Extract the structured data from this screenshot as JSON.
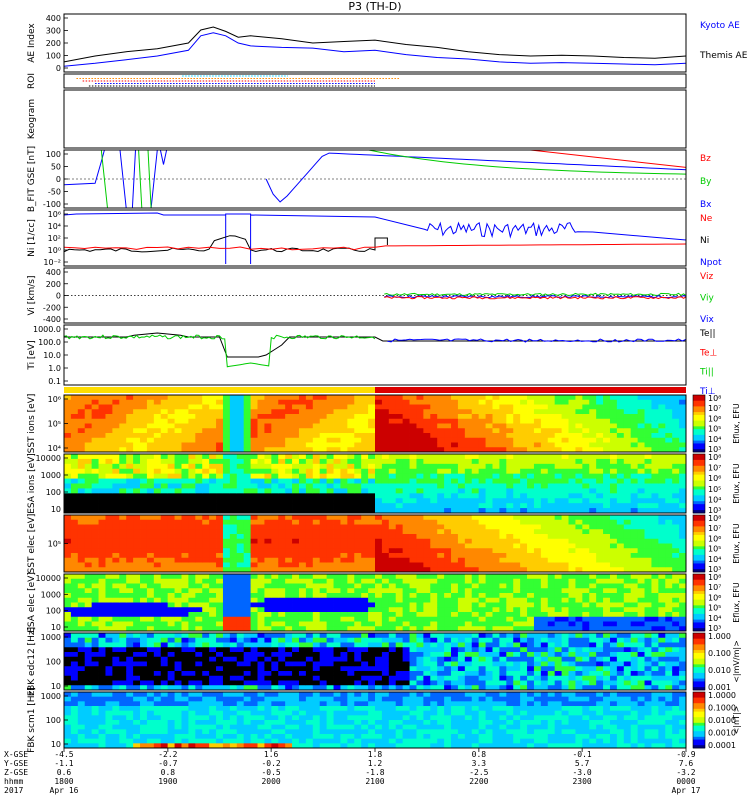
{
  "title": "P3 (TH-D)",
  "colors": {
    "black": "#000000",
    "blue": "#0000ff",
    "red": "#ff0000",
    "green": "#00cc00",
    "cyan": "#00ccff",
    "orange": "#ff8800"
  },
  "chart_data": [
    {
      "type": "line",
      "panel": "ae",
      "ylabel": "AE Index",
      "yticks": [
        "400",
        "300",
        "200",
        "100",
        "0"
      ],
      "ylim": [
        0,
        400
      ],
      "x": [
        0,
        0.05,
        0.1,
        0.15,
        0.2,
        0.22,
        0.24,
        0.26,
        0.28,
        0.3,
        0.35,
        0.4,
        0.45,
        0.5,
        0.55,
        0.6,
        0.65,
        0.7,
        0.75,
        0.8,
        0.85,
        0.9,
        0.95,
        1.0
      ],
      "series": [
        {
          "name": "Kyoto AE",
          "color": "#0000ff",
          "values": [
            40,
            60,
            85,
            110,
            150,
            250,
            270,
            250,
            200,
            180,
            170,
            165,
            140,
            150,
            120,
            100,
            90,
            70,
            60,
            65,
            60,
            55,
            50,
            60
          ]
        },
        {
          "name": "Themis AE",
          "color": "#000000",
          "values": [
            70,
            110,
            140,
            160,
            200,
            290,
            310,
            280,
            240,
            250,
            230,
            200,
            210,
            220,
            190,
            170,
            140,
            120,
            110,
            115,
            110,
            100,
            95,
            110
          ]
        }
      ]
    },
    {
      "type": "scatter",
      "panel": "roi",
      "ylabel": "ROI",
      "rows": [
        {
          "color": "#00ccff",
          "x0": 0.19,
          "x1": 0.36
        },
        {
          "color": "#ff8800",
          "x0": 0.02,
          "x1": 0.54
        },
        {
          "color": "#ff0000",
          "x0": 0.03,
          "x1": 0.5
        },
        {
          "color": "#0000ff",
          "x0": 0.05,
          "x1": 0.5
        },
        {
          "color": "#000000",
          "x0": 0.04,
          "x1": 0.5
        }
      ]
    },
    {
      "type": "heatmap",
      "panel": "keogram",
      "ylabel": "Keogram"
    },
    {
      "type": "line",
      "panel": "bfit",
      "ylabel": "B_FIT GSE [nT]",
      "yticks": [
        "100",
        "50",
        "0",
        "-50",
        "-100"
      ],
      "ylim": [
        -100,
        100
      ],
      "series": [
        {
          "name": "Bz",
          "color": "#ff0000"
        },
        {
          "name": "By",
          "color": "#00cc00"
        },
        {
          "name": "Bx",
          "color": "#0000ff"
        }
      ]
    },
    {
      "type": "line",
      "panel": "ni",
      "ylabel": "Ni [1/cc]",
      "yticks": [
        "10⁶",
        "10⁴",
        "10²",
        "10⁰",
        "10⁻²"
      ],
      "series": [
        {
          "name": "Ne",
          "color": "#ff0000"
        },
        {
          "name": "Ni",
          "color": "#000000"
        },
        {
          "name": "Npot",
          "color": "#0000ff"
        }
      ]
    },
    {
      "type": "line",
      "panel": "vi",
      "ylabel": "Vi [km/s]",
      "yticks": [
        "400",
        "200",
        "0",
        "-200",
        "-400"
      ],
      "ylim": [
        -500,
        500
      ],
      "series": [
        {
          "name": "Viz",
          "color": "#ff0000"
        },
        {
          "name": "Viy",
          "color": "#00cc00"
        },
        {
          "name": "Vix",
          "color": "#0000ff"
        }
      ]
    },
    {
      "type": "line",
      "panel": "ti",
      "ylabel": "Ti [eV]",
      "yticks": [
        "1000.0",
        "100.0",
        "10.0",
        "1.0",
        "0.1"
      ],
      "series": [
        {
          "name": "Te||",
          "color": "#000000"
        },
        {
          "name": "Te⊥",
          "color": "#ff0000"
        },
        {
          "name": "Ti||",
          "color": "#00cc00"
        },
        {
          "name": "Ti⊥",
          "color": "#0000ff"
        }
      ]
    },
    {
      "type": "heatmap",
      "panel": "sst_ion",
      "ylabel": "SST ions [eV]",
      "yticks": [
        "10⁶",
        "10⁵",
        "10⁴"
      ],
      "colorbar": {
        "label": "Eflux, EFU",
        "ticks": [
          "10⁸",
          "10⁷",
          "10⁶",
          "10⁵",
          "10⁴",
          "10³"
        ]
      }
    },
    {
      "type": "heatmap",
      "panel": "esa_ion",
      "ylabel": "ESA ions [eV]",
      "yticks": [
        "10000",
        "1000",
        "100",
        "10"
      ],
      "colorbar": {
        "label": "Eflux, EFU",
        "ticks": [
          "10⁸",
          "10⁷",
          "10⁶",
          "10⁵",
          "10⁴",
          "10³"
        ]
      }
    },
    {
      "type": "heatmap",
      "panel": "sst_elec",
      "ylabel": "SST elec [eV]",
      "yticks": [
        "10⁵"
      ],
      "colorbar": {
        "label": "Eflux, EFU",
        "ticks": [
          "10⁸",
          "10⁷",
          "10⁶",
          "10⁵",
          "10⁴",
          "10³"
        ]
      }
    },
    {
      "type": "heatmap",
      "panel": "esa_elec",
      "ylabel": "ESA elec [eV]",
      "yticks": [
        "10000",
        "1000",
        "100",
        "10"
      ],
      "colorbar": {
        "label": "Eflux, EFU",
        "ticks": [
          "10⁸",
          "10⁷",
          "10⁶",
          "10⁵",
          "10⁴",
          "10³"
        ]
      }
    },
    {
      "type": "heatmap",
      "panel": "fbk_e",
      "ylabel": "FBK edc12 [Hz]",
      "yticks": [
        "1000",
        "100",
        "10"
      ],
      "colorbar": {
        "label": "<|mV/m|>",
        "ticks": [
          "1.000",
          "0.100",
          "0.010",
          "0.001"
        ]
      }
    },
    {
      "type": "heatmap",
      "panel": "fbk_b",
      "ylabel": "FBK scm1 [Hz]",
      "yticks": [
        "1000",
        "100",
        "10"
      ],
      "colorbar": {
        "label": "<|nT|>",
        "ticks": [
          "1.0000",
          "0.1000",
          "0.0100",
          "0.0010",
          "0.0001"
        ]
      }
    }
  ],
  "ephemeris": {
    "labels": [
      "X-GSE",
      "Y-GSE",
      "Z-GSE",
      "hhmm",
      "2017"
    ],
    "columns": [
      {
        "x": 0.0,
        "vals": [
          "-4.5",
          "-1.1",
          "0.6",
          "1800",
          "Apr 16"
        ]
      },
      {
        "x": 0.167,
        "vals": [
          "-2.2",
          "-0.7",
          "0.8",
          "1900",
          ""
        ]
      },
      {
        "x": 0.333,
        "vals": [
          "1.6",
          "-0.2",
          "-0.5",
          "2000",
          ""
        ]
      },
      {
        "x": 0.5,
        "vals": [
          "1.8",
          "1.2",
          "-1.8",
          "2100",
          ""
        ]
      },
      {
        "x": 0.667,
        "vals": [
          "0.8",
          "3.3",
          "-2.5",
          "2200",
          ""
        ]
      },
      {
        "x": 0.833,
        "vals": [
          "-0.1",
          "5.7",
          "-3.0",
          "2300",
          ""
        ]
      },
      {
        "x": 1.0,
        "vals": [
          "-0.9",
          "7.6",
          "-3.2",
          "0000",
          "Apr 17"
        ]
      }
    ]
  }
}
